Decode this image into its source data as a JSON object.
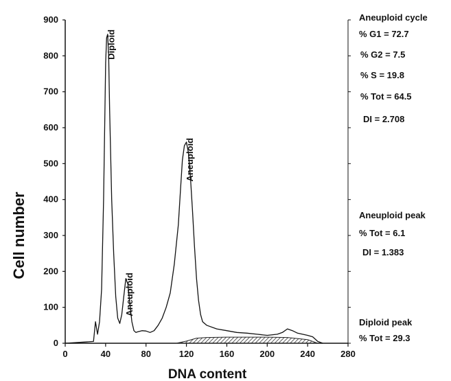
{
  "chart_data": {
    "type": "line",
    "xlabel": "DNA content",
    "ylabel": "Cell number",
    "xlim": [
      0,
      280
    ],
    "ylim": [
      0,
      900
    ],
    "x_ticks": [
      "0",
      "40",
      "80",
      "120",
      "160",
      "200",
      "240",
      "280"
    ],
    "y_ticks": [
      "0",
      "100",
      "200",
      "300",
      "400",
      "500",
      "600",
      "700",
      "800",
      "900"
    ],
    "grid": false,
    "series": [
      {
        "x": [
          0,
          28,
          30,
          32,
          34,
          36,
          38,
          40,
          41,
          42,
          43,
          44,
          46,
          48,
          50,
          52,
          54,
          56,
          58,
          60,
          62,
          64,
          66,
          68,
          70,
          72,
          76,
          80,
          84,
          88,
          92,
          96,
          100,
          104,
          108,
          112,
          114,
          116,
          118,
          120,
          122,
          124,
          126,
          128,
          130,
          132,
          134,
          136,
          140,
          150,
          160,
          170,
          180,
          190,
          200,
          210,
          215,
          220,
          225,
          230,
          235,
          240,
          245,
          250,
          255
        ],
        "y": [
          0,
          5,
          60,
          25,
          60,
          150,
          400,
          780,
          850,
          860,
          800,
          650,
          400,
          250,
          130,
          70,
          55,
          80,
          130,
          180,
          165,
          110,
          60,
          35,
          30,
          32,
          35,
          34,
          30,
          35,
          50,
          70,
          100,
          140,
          220,
          330,
          420,
          510,
          550,
          560,
          530,
          460,
          370,
          270,
          180,
          120,
          80,
          60,
          50,
          40,
          35,
          30,
          28,
          25,
          22,
          25,
          30,
          40,
          35,
          28,
          25,
          22,
          18,
          5,
          0
        ]
      }
    ],
    "shaded_region": {
      "x": [
        110,
        120,
        130,
        140,
        160,
        180,
        200,
        220,
        240,
        250
      ],
      "y": [
        0,
        6,
        14,
        16,
        17,
        17,
        17,
        16,
        10,
        0
      ]
    },
    "annotations": [
      {
        "text": "Diploid",
        "x": 43,
        "y": 862
      },
      {
        "text": "Aneuploid",
        "x": 61,
        "y": 185
      },
      {
        "text": "Aneuploid",
        "x": 121,
        "y": 560
      }
    ],
    "side_labels": {
      "cycle": [
        "Aneuploid cycle",
        "% G1 = 72.7",
        "% G2 = 7.5",
        "% S = 19.8",
        "% Tot = 64.5",
        "DI  = 2.708"
      ],
      "aneuploid_peak": [
        "Aneuploid peak",
        "% Tot = 6.1",
        "DI  = 1.383"
      ],
      "diploid_peak": [
        "Diploid peak",
        "% Tot = 29.3"
      ]
    }
  }
}
